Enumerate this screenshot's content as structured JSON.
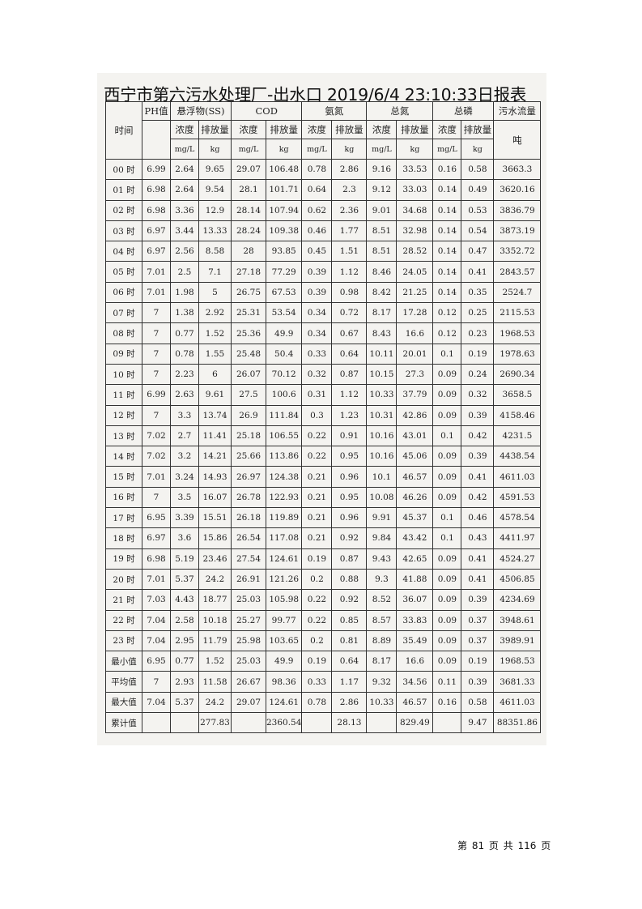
{
  "title": "西宁市第六污水处理厂-出水口 2019/6/4 23:10:33日报表",
  "header": {
    "time": "时间",
    "ph": "PH值",
    "groups": [
      "悬浮物(SS)",
      "COD",
      "氨氮",
      "总氮",
      "总磷"
    ],
    "flow": "污水流量",
    "sub": [
      "浓度",
      "排放量"
    ],
    "units": [
      "mg/L",
      "kg"
    ],
    "flow_unit": "吨"
  },
  "rows": [
    [
      "00 时",
      "6.99",
      "2.64",
      "9.65",
      "29.07",
      "106.48",
      "0.78",
      "2.86",
      "9.16",
      "33.53",
      "0.16",
      "0.58",
      "3663.3"
    ],
    [
      "01 时",
      "6.98",
      "2.64",
      "9.54",
      "28.1",
      "101.71",
      "0.64",
      "2.3",
      "9.12",
      "33.03",
      "0.14",
      "0.49",
      "3620.16"
    ],
    [
      "02 时",
      "6.98",
      "3.36",
      "12.9",
      "28.14",
      "107.94",
      "0.62",
      "2.36",
      "9.01",
      "34.68",
      "0.14",
      "0.53",
      "3836.79"
    ],
    [
      "03 时",
      "6.97",
      "3.44",
      "13.33",
      "28.24",
      "109.38",
      "0.46",
      "1.77",
      "8.51",
      "32.98",
      "0.14",
      "0.54",
      "3873.19"
    ],
    [
      "04 时",
      "6.97",
      "2.56",
      "8.58",
      "28",
      "93.85",
      "0.45",
      "1.51",
      "8.51",
      "28.52",
      "0.14",
      "0.47",
      "3352.72"
    ],
    [
      "05 时",
      "7.01",
      "2.5",
      "7.1",
      "27.18",
      "77.29",
      "0.39",
      "1.12",
      "8.46",
      "24.05",
      "0.14",
      "0.41",
      "2843.57"
    ],
    [
      "06 时",
      "7.01",
      "1.98",
      "5",
      "26.75",
      "67.53",
      "0.39",
      "0.98",
      "8.42",
      "21.25",
      "0.14",
      "0.35",
      "2524.7"
    ],
    [
      "07 时",
      "7",
      "1.38",
      "2.92",
      "25.31",
      "53.54",
      "0.34",
      "0.72",
      "8.17",
      "17.28",
      "0.12",
      "0.25",
      "2115.53"
    ],
    [
      "08 时",
      "7",
      "0.77",
      "1.52",
      "25.36",
      "49.9",
      "0.34",
      "0.67",
      "8.43",
      "16.6",
      "0.12",
      "0.23",
      "1968.53"
    ],
    [
      "09 时",
      "7",
      "0.78",
      "1.55",
      "25.48",
      "50.4",
      "0.33",
      "0.64",
      "10.11",
      "20.01",
      "0.1",
      "0.19",
      "1978.63"
    ],
    [
      "10 时",
      "7",
      "2.23",
      "6",
      "26.07",
      "70.12",
      "0.32",
      "0.87",
      "10.15",
      "27.3",
      "0.09",
      "0.24",
      "2690.34"
    ],
    [
      "11 时",
      "6.99",
      "2.63",
      "9.61",
      "27.5",
      "100.6",
      "0.31",
      "1.12",
      "10.33",
      "37.79",
      "0.09",
      "0.32",
      "3658.5"
    ],
    [
      "12 时",
      "7",
      "3.3",
      "13.74",
      "26.9",
      "111.84",
      "0.3",
      "1.23",
      "10.31",
      "42.86",
      "0.09",
      "0.39",
      "4158.46"
    ],
    [
      "13 时",
      "7.02",
      "2.7",
      "11.41",
      "25.18",
      "106.55",
      "0.22",
      "0.91",
      "10.16",
      "43.01",
      "0.1",
      "0.42",
      "4231.5"
    ],
    [
      "14 时",
      "7.02",
      "3.2",
      "14.21",
      "25.66",
      "113.86",
      "0.22",
      "0.95",
      "10.16",
      "45.06",
      "0.09",
      "0.39",
      "4438.54"
    ],
    [
      "15 时",
      "7.01",
      "3.24",
      "14.93",
      "26.97",
      "124.38",
      "0.21",
      "0.96",
      "10.1",
      "46.57",
      "0.09",
      "0.41",
      "4611.03"
    ],
    [
      "16 时",
      "7",
      "3.5",
      "16.07",
      "26.78",
      "122.93",
      "0.21",
      "0.95",
      "10.08",
      "46.26",
      "0.09",
      "0.42",
      "4591.53"
    ],
    [
      "17 时",
      "6.95",
      "3.39",
      "15.51",
      "26.18",
      "119.89",
      "0.21",
      "0.96",
      "9.91",
      "45.37",
      "0.1",
      "0.46",
      "4578.54"
    ],
    [
      "18 时",
      "6.97",
      "3.6",
      "15.86",
      "26.54",
      "117.08",
      "0.21",
      "0.92",
      "9.84",
      "43.42",
      "0.1",
      "0.43",
      "4411.97"
    ],
    [
      "19 时",
      "6.98",
      "5.19",
      "23.46",
      "27.54",
      "124.61",
      "0.19",
      "0.87",
      "9.43",
      "42.65",
      "0.09",
      "0.41",
      "4524.27"
    ],
    [
      "20 时",
      "7.01",
      "5.37",
      "24.2",
      "26.91",
      "121.26",
      "0.2",
      "0.88",
      "9.3",
      "41.88",
      "0.09",
      "0.41",
      "4506.85"
    ],
    [
      "21 时",
      "7.03",
      "4.43",
      "18.77",
      "25.03",
      "105.98",
      "0.22",
      "0.92",
      "8.52",
      "36.07",
      "0.09",
      "0.39",
      "4234.69"
    ],
    [
      "22 时",
      "7.04",
      "2.58",
      "10.18",
      "25.27",
      "99.77",
      "0.22",
      "0.85",
      "8.57",
      "33.83",
      "0.09",
      "0.37",
      "3948.61"
    ],
    [
      "23 时",
      "7.04",
      "2.95",
      "11.79",
      "25.98",
      "103.65",
      "0.2",
      "0.81",
      "8.89",
      "35.49",
      "0.09",
      "0.37",
      "3989.91"
    ],
    [
      "最小值",
      "6.95",
      "0.77",
      "1.52",
      "25.03",
      "49.9",
      "0.19",
      "0.64",
      "8.17",
      "16.6",
      "0.09",
      "0.19",
      "1968.53"
    ],
    [
      "平均值",
      "7",
      "2.93",
      "11.58",
      "26.67",
      "98.36",
      "0.33",
      "1.17",
      "9.32",
      "34.56",
      "0.11",
      "0.39",
      "3681.33"
    ],
    [
      "最大值",
      "7.04",
      "5.37",
      "24.2",
      "29.07",
      "124.61",
      "0.78",
      "2.86",
      "10.33",
      "46.57",
      "0.16",
      "0.58",
      "4611.03"
    ],
    [
      "累计值",
      "",
      "",
      "277.83",
      "",
      "2360.54",
      "",
      "28.13",
      "",
      "829.49",
      "",
      "9.47",
      "88351.86"
    ]
  ],
  "footer": "第 81 页 共 116 页"
}
